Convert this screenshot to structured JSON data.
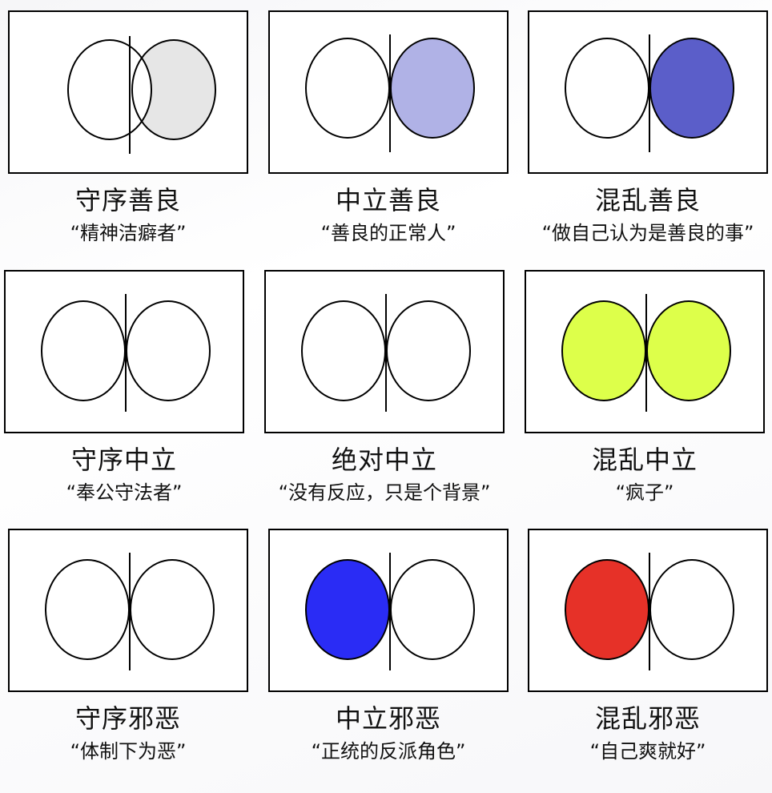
{
  "cells": [
    {
      "name": "守序善良",
      "desc": "“精神洁癖者”",
      "fill": "#e6e6e6"
    },
    {
      "name": "中立善良",
      "desc": "“善良的正常人”",
      "fill": "#b0b2e6"
    },
    {
      "name": "混乱善良",
      "desc": "“做自己认为是善良的事”",
      "fill": "#5b5ec9"
    },
    {
      "name": "守序中立",
      "desc": "“奉公守法者”",
      "fill": "#f7cdb2"
    },
    {
      "name": "绝对中立",
      "desc": "“没有反应，只是个背景”",
      "fill": ""
    },
    {
      "name": "混乱中立",
      "desc": "“疯子”",
      "fill": "#ddff4a"
    },
    {
      "name": "守序邪恶",
      "desc": "“体制下为恶”",
      "fill": "#c0622b"
    },
    {
      "name": "中立邪恶",
      "desc": "“正统的反派角色”",
      "fill": "#2a2cf5"
    },
    {
      "name": "混乱邪恶",
      "desc": "“自己爽就好”",
      "fill": "#e63128"
    }
  ]
}
